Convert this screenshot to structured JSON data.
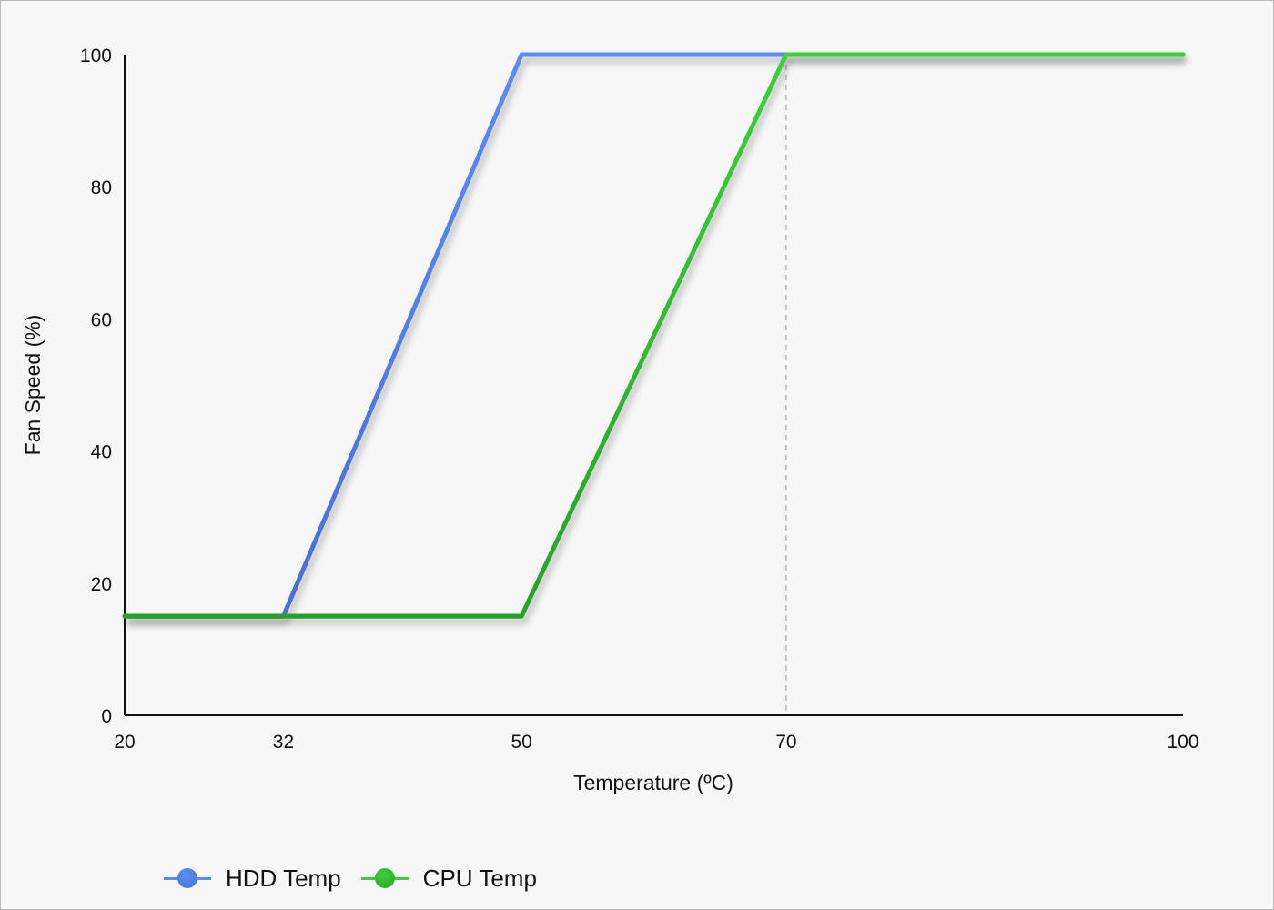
{
  "chart_data": {
    "type": "line",
    "xlabel": "Temperature (ºC)",
    "ylabel": "Fan Speed (%)",
    "x_ticks": [
      "20",
      "32",
      "50",
      "70",
      "100"
    ],
    "x_tick_values": [
      20,
      32,
      50,
      70,
      100
    ],
    "y_ticks": [
      "0",
      "20",
      "40",
      "60",
      "80",
      "100"
    ],
    "y_tick_values": [
      0,
      20,
      40,
      60,
      80,
      100
    ],
    "xlim": [
      20,
      100
    ],
    "ylim": [
      0,
      100
    ],
    "grid": false,
    "reference_line_x": 70,
    "legend_position": "bottom-left",
    "series": [
      {
        "name": "HDD Temp",
        "color": "#4a6fd1",
        "color_light": "#5b8cf2",
        "points": [
          [
            20,
            15
          ],
          [
            32,
            15
          ],
          [
            50,
            100
          ],
          [
            100,
            100
          ]
        ]
      },
      {
        "name": "CPU Temp",
        "color": "#26a326",
        "color_light": "#3ccf3c",
        "points": [
          [
            20,
            15
          ],
          [
            50,
            15
          ],
          [
            70,
            100
          ],
          [
            100,
            100
          ]
        ]
      }
    ]
  }
}
